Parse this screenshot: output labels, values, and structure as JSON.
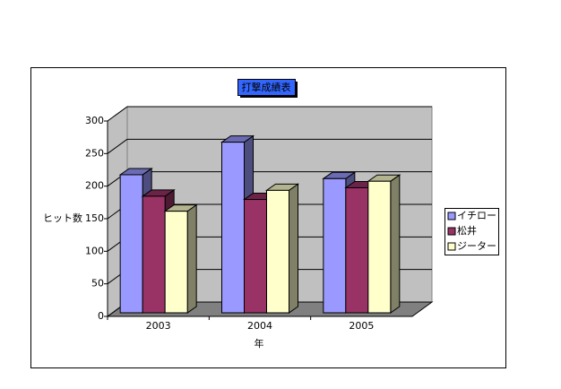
{
  "chart_data": {
    "type": "bar",
    "title": "打撃成績表",
    "xlabel": "年",
    "ylabel": "ヒット数",
    "categories": [
      "2003",
      "2004",
      "2005"
    ],
    "series": [
      {
        "name": "イチロー",
        "color": "#9999ff",
        "values": [
          212,
          262,
          206
        ]
      },
      {
        "name": "松井",
        "color": "#993366",
        "values": [
          179,
          174,
          192
        ]
      },
      {
        "name": "ジーター",
        "color": "#ffffcc",
        "values": [
          156,
          188,
          202
        ]
      }
    ],
    "ylim": [
      0,
      300
    ],
    "yticks": [
      0,
      50,
      100,
      150,
      200,
      250,
      300
    ],
    "grid": true,
    "legend": "right"
  }
}
